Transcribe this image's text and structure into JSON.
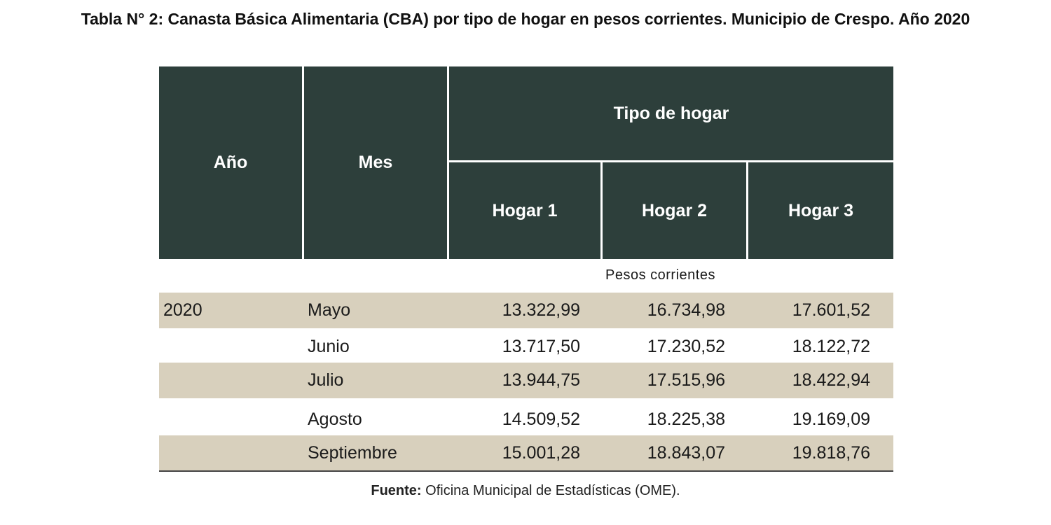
{
  "title": "Tabla N° 2: Canasta Básica Alimentaria (CBA) por tipo de hogar en pesos corrientes. Municipio de Crespo. Año 2020",
  "table": {
    "headers": {
      "year": "Año",
      "month": "Mes",
      "group": "Tipo de hogar",
      "h1": "Hogar 1",
      "h2": "Hogar 2",
      "h3": "Hogar 3"
    },
    "units_label": "Pesos corrientes",
    "rows": [
      {
        "year": "2020",
        "month": "Mayo",
        "h1": "13.322,99",
        "h2": "16.734,98",
        "h3": "17.601,52"
      },
      {
        "year": "",
        "month": "Junio",
        "h1": "13.717,50",
        "h2": "17.230,52",
        "h3": "18.122,72"
      },
      {
        "year": "",
        "month": "Julio",
        "h1": "13.944,75",
        "h2": "17.515,96",
        "h3": "18.422,94"
      },
      {
        "year": "",
        "month": "Agosto",
        "h1": "14.509,52",
        "h2": "18.225,38",
        "h3": "19.169,09"
      },
      {
        "year": "",
        "month": "Septiembre",
        "h1": "15.001,28",
        "h2": "18.843,07",
        "h3": "19.818,76"
      }
    ]
  },
  "source": {
    "label": "Fuente:",
    "text": " Oficina Municipal de Estadísticas (OME)."
  },
  "colors": {
    "header_bg": "#2d3f3b",
    "row_shade": "#d8d0bd"
  }
}
